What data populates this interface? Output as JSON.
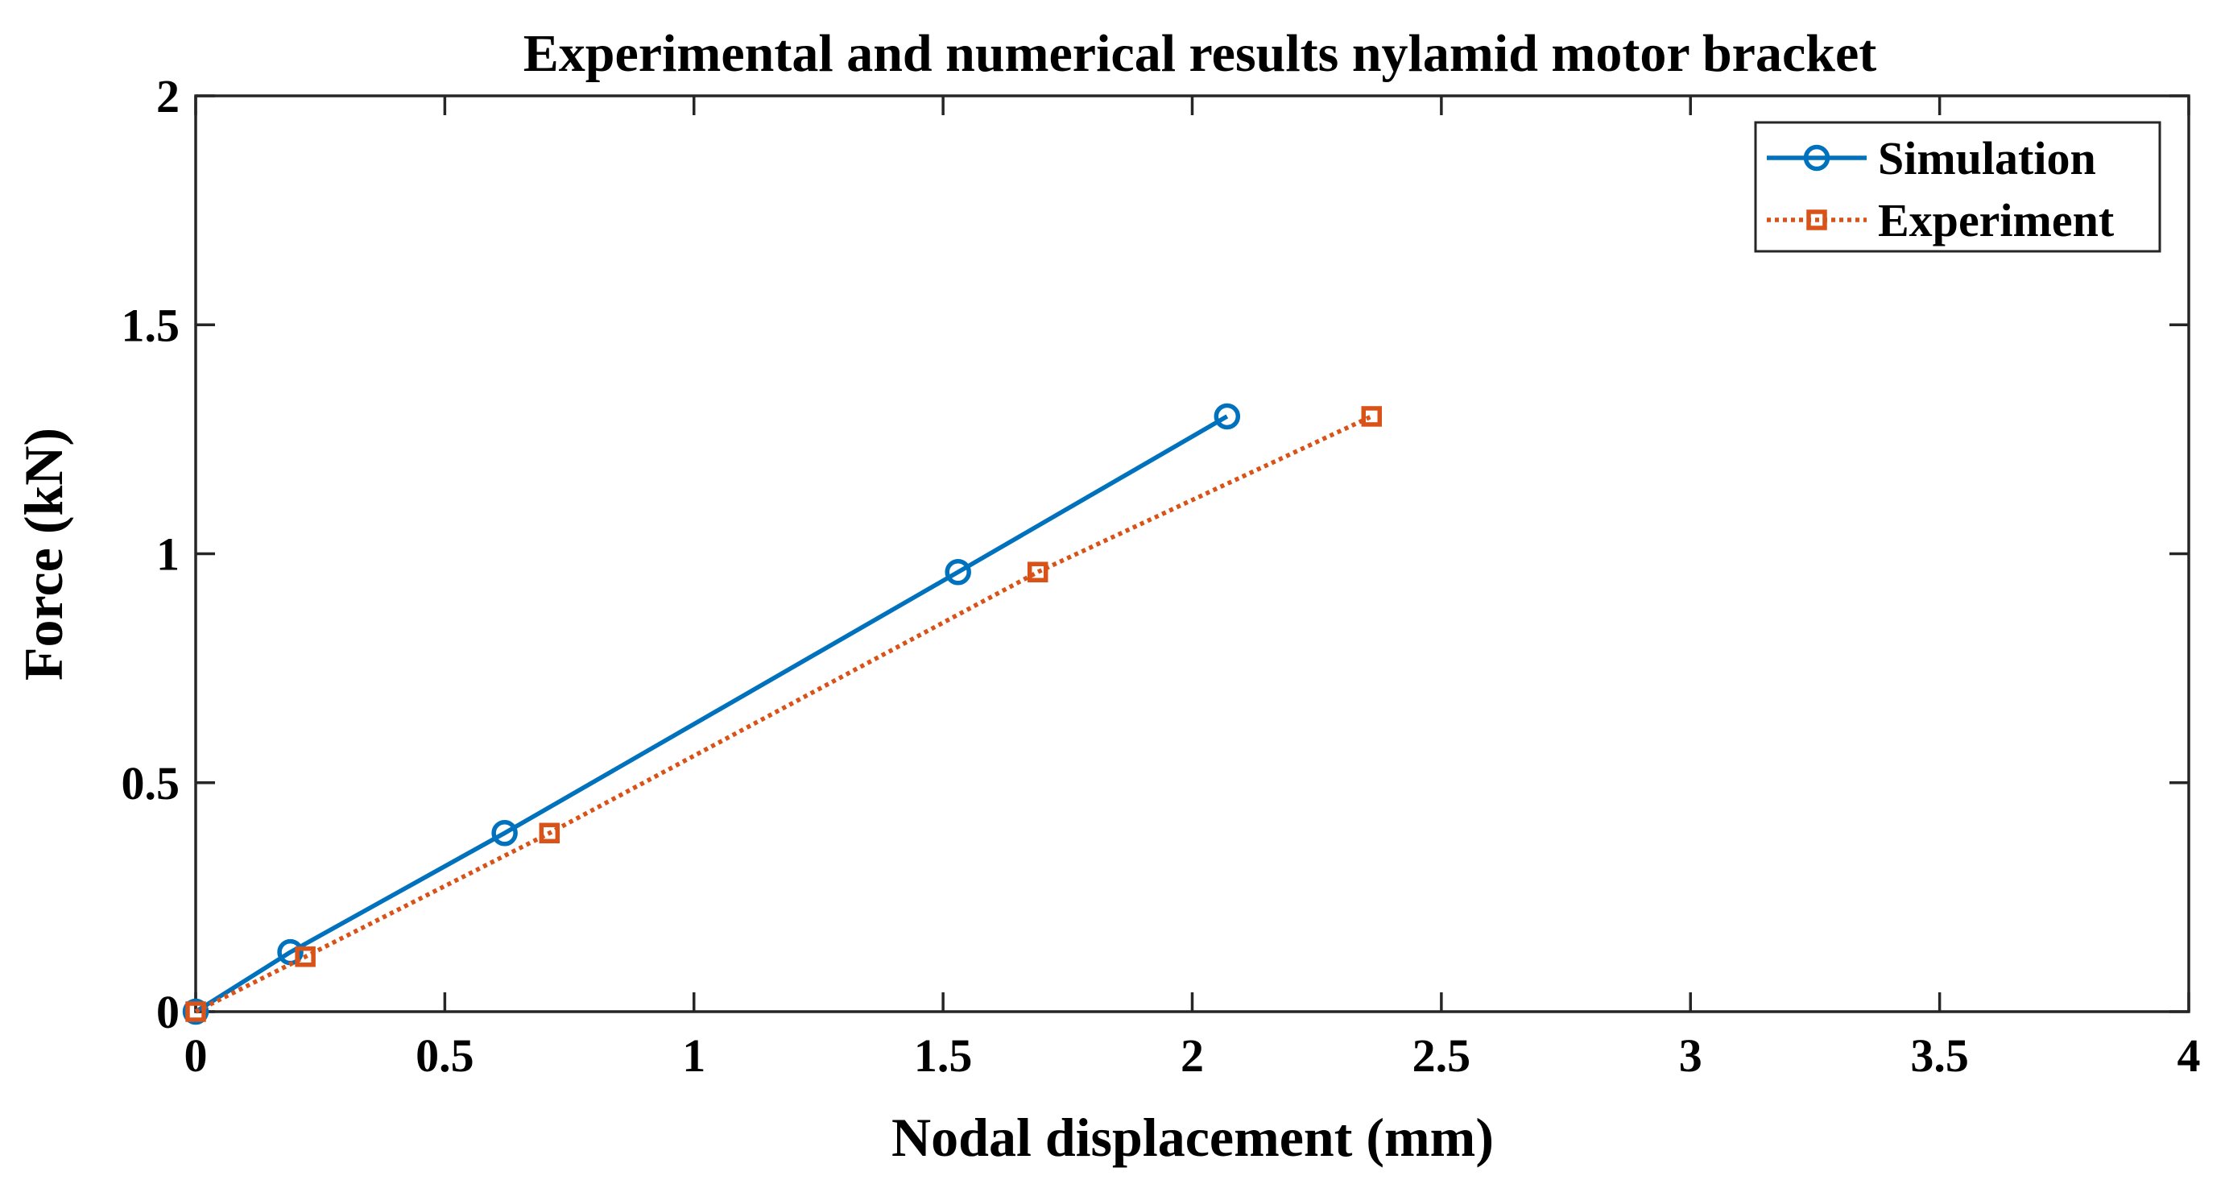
{
  "chart_data": {
    "type": "line",
    "title": "Experimental and numerical results nylamid motor bracket",
    "xlabel": "Nodal displacement (mm)",
    "ylabel": "Force (kN)",
    "xlim": [
      0,
      4
    ],
    "ylim": [
      0,
      2
    ],
    "xticks": [
      0,
      0.5,
      1,
      1.5,
      2,
      2.5,
      3,
      3.5,
      4
    ],
    "xtick_labels": [
      "0",
      "0.5",
      "1",
      "1.5",
      "2",
      "2.5",
      "3",
      "3.5",
      "4"
    ],
    "yticks": [
      0,
      0.5,
      1,
      1.5,
      2
    ],
    "ytick_labels": [
      "0",
      "0.5",
      "1",
      "1.5",
      "2"
    ],
    "grid": false,
    "legend_position": "top-right",
    "series": [
      {
        "name": "Simulation",
        "color": "#0072BD",
        "line_style": "solid",
        "marker": "circle",
        "x": [
          0,
          0.19,
          0.62,
          1.53,
          2.07
        ],
        "y": [
          0,
          0.13,
          0.39,
          0.96,
          1.3
        ]
      },
      {
        "name": "Experiment",
        "color": "#D95319",
        "line_style": "dotted",
        "marker": "square",
        "x": [
          0,
          0.22,
          0.71,
          1.69,
          2.36
        ],
        "y": [
          0,
          0.12,
          0.39,
          0.96,
          1.3
        ]
      }
    ]
  }
}
